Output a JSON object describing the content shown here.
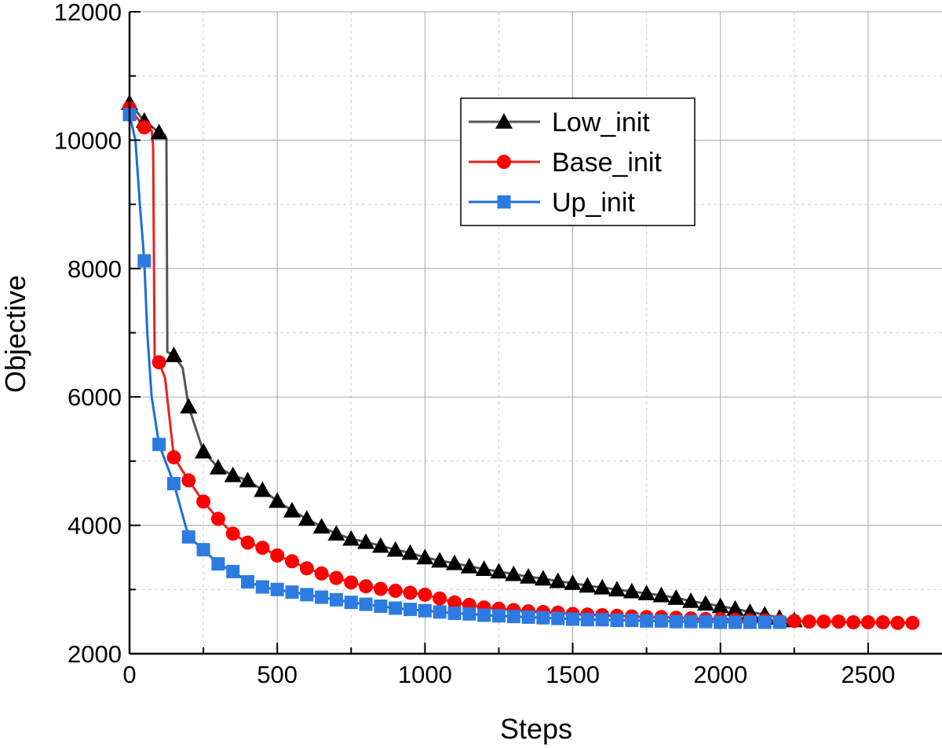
{
  "chart_data": {
    "type": "line",
    "xlabel": "Steps",
    "ylabel": "Objective",
    "xlim": [
      0,
      2750
    ],
    "ylim": [
      2000,
      12000
    ],
    "x_ticks": [
      0,
      500,
      1000,
      1500,
      2000,
      2500
    ],
    "y_ticks": [
      2000,
      4000,
      6000,
      8000,
      10000,
      12000
    ],
    "x_tick_labels": [
      "0",
      "500",
      "1000",
      "1500",
      "2000",
      "2500"
    ],
    "y_tick_labels": [
      "2000",
      "4000",
      "6000",
      "8000",
      "10000",
      "12000"
    ],
    "grid": true,
    "legend_position": "upper-middle-right",
    "series": [
      {
        "name": "Low_init",
        "color": "#555555",
        "marker_color": "#000000",
        "marker": "triangle",
        "line": [
          [
            0,
            10580
          ],
          [
            50,
            10300
          ],
          [
            100,
            10120
          ],
          [
            120,
            10080
          ],
          [
            125,
            10000
          ],
          [
            128,
            6700
          ],
          [
            150,
            6650
          ],
          [
            180,
            6450
          ],
          [
            200,
            5850
          ],
          [
            250,
            5150
          ],
          [
            300,
            4900
          ],
          [
            350,
            4780
          ],
          [
            400,
            4700
          ],
          [
            450,
            4550
          ],
          [
            500,
            4380
          ],
          [
            550,
            4230
          ],
          [
            600,
            4100
          ],
          [
            650,
            3980
          ],
          [
            700,
            3870
          ],
          [
            750,
            3790
          ],
          [
            800,
            3740
          ],
          [
            850,
            3680
          ],
          [
            900,
            3620
          ],
          [
            950,
            3570
          ],
          [
            1000,
            3500
          ],
          [
            1050,
            3450
          ],
          [
            1100,
            3410
          ],
          [
            1150,
            3360
          ],
          [
            1200,
            3320
          ],
          [
            1250,
            3280
          ],
          [
            1300,
            3240
          ],
          [
            1350,
            3200
          ],
          [
            1400,
            3170
          ],
          [
            1450,
            3130
          ],
          [
            1500,
            3100
          ],
          [
            1550,
            3060
          ],
          [
            1600,
            3030
          ],
          [
            1650,
            3000
          ],
          [
            1700,
            2970
          ],
          [
            1750,
            2940
          ],
          [
            1800,
            2910
          ],
          [
            1850,
            2870
          ],
          [
            1900,
            2820
          ],
          [
            1950,
            2780
          ],
          [
            2000,
            2740
          ],
          [
            2050,
            2700
          ],
          [
            2100,
            2650
          ],
          [
            2150,
            2610
          ],
          [
            2200,
            2560
          ],
          [
            2250,
            2520
          ]
        ],
        "markers": [
          [
            0,
            10580
          ],
          [
            50,
            10300
          ],
          [
            100,
            10120
          ],
          [
            150,
            6650
          ],
          [
            200,
            5850
          ],
          [
            250,
            5150
          ],
          [
            300,
            4900
          ],
          [
            350,
            4780
          ],
          [
            400,
            4700
          ],
          [
            450,
            4550
          ],
          [
            500,
            4380
          ],
          [
            550,
            4230
          ],
          [
            600,
            4100
          ],
          [
            650,
            3980
          ],
          [
            700,
            3870
          ],
          [
            750,
            3790
          ],
          [
            800,
            3740
          ],
          [
            850,
            3680
          ],
          [
            900,
            3620
          ],
          [
            950,
            3570
          ],
          [
            1000,
            3500
          ],
          [
            1050,
            3450
          ],
          [
            1100,
            3410
          ],
          [
            1150,
            3360
          ],
          [
            1200,
            3320
          ],
          [
            1250,
            3280
          ],
          [
            1300,
            3240
          ],
          [
            1350,
            3200
          ],
          [
            1400,
            3170
          ],
          [
            1450,
            3130
          ],
          [
            1500,
            3100
          ],
          [
            1550,
            3060
          ],
          [
            1600,
            3030
          ],
          [
            1650,
            3000
          ],
          [
            1700,
            2970
          ],
          [
            1750,
            2940
          ],
          [
            1800,
            2910
          ],
          [
            1850,
            2870
          ],
          [
            1900,
            2820
          ],
          [
            1950,
            2780
          ],
          [
            2000,
            2740
          ],
          [
            2050,
            2700
          ],
          [
            2100,
            2650
          ],
          [
            2150,
            2610
          ],
          [
            2200,
            2560
          ],
          [
            2250,
            2520
          ]
        ]
      },
      {
        "name": "Base_init",
        "color": "#e8231f",
        "marker_color": "#ff0000",
        "marker": "circle",
        "line": [
          [
            0,
            10500
          ],
          [
            50,
            10200
          ],
          [
            75,
            10150
          ],
          [
            80,
            9900
          ],
          [
            85,
            6600
          ],
          [
            100,
            6540
          ],
          [
            120,
            6300
          ],
          [
            150,
            5060
          ],
          [
            200,
            4700
          ],
          [
            250,
            4370
          ],
          [
            300,
            4100
          ],
          [
            350,
            3870
          ],
          [
            400,
            3730
          ],
          [
            450,
            3650
          ],
          [
            500,
            3530
          ],
          [
            550,
            3440
          ],
          [
            600,
            3330
          ],
          [
            650,
            3250
          ],
          [
            700,
            3180
          ],
          [
            750,
            3110
          ],
          [
            800,
            3050
          ],
          [
            850,
            3010
          ],
          [
            900,
            2980
          ],
          [
            950,
            2950
          ],
          [
            1000,
            2920
          ],
          [
            1050,
            2860
          ],
          [
            1100,
            2800
          ],
          [
            1150,
            2760
          ],
          [
            1200,
            2720
          ],
          [
            1250,
            2700
          ],
          [
            1300,
            2680
          ],
          [
            1350,
            2660
          ],
          [
            1400,
            2650
          ],
          [
            1450,
            2640
          ],
          [
            1500,
            2620
          ],
          [
            1550,
            2610
          ],
          [
            1600,
            2600
          ],
          [
            1650,
            2590
          ],
          [
            1700,
            2580
          ],
          [
            1750,
            2570
          ],
          [
            1800,
            2570
          ],
          [
            1850,
            2560
          ],
          [
            1900,
            2550
          ],
          [
            1950,
            2540
          ],
          [
            2000,
            2540
          ],
          [
            2050,
            2530
          ],
          [
            2100,
            2520
          ],
          [
            2150,
            2520
          ],
          [
            2200,
            2510
          ],
          [
            2250,
            2510
          ],
          [
            2300,
            2500
          ],
          [
            2350,
            2500
          ],
          [
            2400,
            2500
          ],
          [
            2450,
            2490
          ],
          [
            2500,
            2490
          ],
          [
            2550,
            2490
          ],
          [
            2600,
            2480
          ],
          [
            2650,
            2480
          ],
          [
            2670,
            2480
          ]
        ],
        "markers": [
          [
            0,
            10500
          ],
          [
            50,
            10200
          ],
          [
            100,
            6540
          ],
          [
            150,
            5060
          ],
          [
            200,
            4700
          ],
          [
            250,
            4370
          ],
          [
            300,
            4100
          ],
          [
            350,
            3870
          ],
          [
            400,
            3730
          ],
          [
            450,
            3650
          ],
          [
            500,
            3530
          ],
          [
            550,
            3440
          ],
          [
            600,
            3330
          ],
          [
            650,
            3250
          ],
          [
            700,
            3180
          ],
          [
            750,
            3110
          ],
          [
            800,
            3050
          ],
          [
            850,
            3010
          ],
          [
            900,
            2980
          ],
          [
            950,
            2950
          ],
          [
            1000,
            2920
          ],
          [
            1050,
            2860
          ],
          [
            1100,
            2800
          ],
          [
            1150,
            2760
          ],
          [
            1200,
            2720
          ],
          [
            1250,
            2700
          ],
          [
            1300,
            2680
          ],
          [
            1350,
            2660
          ],
          [
            1400,
            2650
          ],
          [
            1450,
            2640
          ],
          [
            1500,
            2620
          ],
          [
            1550,
            2610
          ],
          [
            1600,
            2600
          ],
          [
            1650,
            2590
          ],
          [
            1700,
            2580
          ],
          [
            1750,
            2570
          ],
          [
            1800,
            2570
          ],
          [
            1850,
            2560
          ],
          [
            1900,
            2550
          ],
          [
            1950,
            2540
          ],
          [
            2000,
            2540
          ],
          [
            2050,
            2530
          ],
          [
            2100,
            2520
          ],
          [
            2150,
            2520
          ],
          [
            2200,
            2510
          ],
          [
            2250,
            2510
          ],
          [
            2300,
            2500
          ],
          [
            2350,
            2500
          ],
          [
            2400,
            2500
          ],
          [
            2450,
            2490
          ],
          [
            2500,
            2490
          ],
          [
            2550,
            2490
          ],
          [
            2600,
            2480
          ],
          [
            2650,
            2480
          ]
        ]
      },
      {
        "name": "Up_init",
        "color": "#1a6fd6",
        "marker_color": "#2d7be0",
        "marker": "square",
        "line": [
          [
            0,
            10400
          ],
          [
            20,
            10000
          ],
          [
            35,
            9000
          ],
          [
            50,
            8120
          ],
          [
            60,
            7000
          ],
          [
            75,
            6000
          ],
          [
            100,
            5260
          ],
          [
            150,
            4650
          ],
          [
            200,
            3820
          ],
          [
            250,
            3620
          ],
          [
            300,
            3400
          ],
          [
            350,
            3280
          ],
          [
            400,
            3120
          ],
          [
            450,
            3040
          ],
          [
            500,
            3000
          ],
          [
            550,
            2960
          ],
          [
            600,
            2920
          ],
          [
            650,
            2880
          ],
          [
            700,
            2840
          ],
          [
            750,
            2800
          ],
          [
            800,
            2770
          ],
          [
            850,
            2740
          ],
          [
            900,
            2710
          ],
          [
            950,
            2690
          ],
          [
            1000,
            2670
          ],
          [
            1050,
            2650
          ],
          [
            1100,
            2630
          ],
          [
            1150,
            2620
          ],
          [
            1200,
            2600
          ],
          [
            1250,
            2590
          ],
          [
            1300,
            2580
          ],
          [
            1350,
            2570
          ],
          [
            1400,
            2560
          ],
          [
            1450,
            2550
          ],
          [
            1500,
            2540
          ],
          [
            1550,
            2530
          ],
          [
            1600,
            2530
          ],
          [
            1650,
            2520
          ],
          [
            1700,
            2520
          ],
          [
            1750,
            2510
          ],
          [
            1800,
            2510
          ],
          [
            1850,
            2500
          ],
          [
            1900,
            2500
          ],
          [
            1950,
            2500
          ],
          [
            2000,
            2490
          ],
          [
            2050,
            2490
          ],
          [
            2100,
            2490
          ],
          [
            2150,
            2490
          ],
          [
            2200,
            2490
          ]
        ],
        "markers": [
          [
            0,
            10400
          ],
          [
            50,
            8120
          ],
          [
            100,
            5260
          ],
          [
            150,
            4650
          ],
          [
            200,
            3820
          ],
          [
            250,
            3620
          ],
          [
            300,
            3400
          ],
          [
            350,
            3280
          ],
          [
            400,
            3120
          ],
          [
            450,
            3040
          ],
          [
            500,
            3000
          ],
          [
            550,
            2960
          ],
          [
            600,
            2920
          ],
          [
            650,
            2880
          ],
          [
            700,
            2840
          ],
          [
            750,
            2800
          ],
          [
            800,
            2770
          ],
          [
            850,
            2740
          ],
          [
            900,
            2710
          ],
          [
            950,
            2690
          ],
          [
            1000,
            2670
          ],
          [
            1050,
            2650
          ],
          [
            1100,
            2630
          ],
          [
            1150,
            2620
          ],
          [
            1200,
            2600
          ],
          [
            1250,
            2590
          ],
          [
            1300,
            2580
          ],
          [
            1350,
            2570
          ],
          [
            1400,
            2560
          ],
          [
            1450,
            2550
          ],
          [
            1500,
            2540
          ],
          [
            1550,
            2530
          ],
          [
            1600,
            2530
          ],
          [
            1650,
            2520
          ],
          [
            1700,
            2520
          ],
          [
            1750,
            2510
          ],
          [
            1800,
            2510
          ],
          [
            1850,
            2500
          ],
          [
            1900,
            2500
          ],
          [
            1950,
            2500
          ],
          [
            2000,
            2490
          ],
          [
            2050,
            2490
          ],
          [
            2100,
            2490
          ],
          [
            2150,
            2490
          ],
          [
            2200,
            2490
          ]
        ]
      }
    ]
  }
}
